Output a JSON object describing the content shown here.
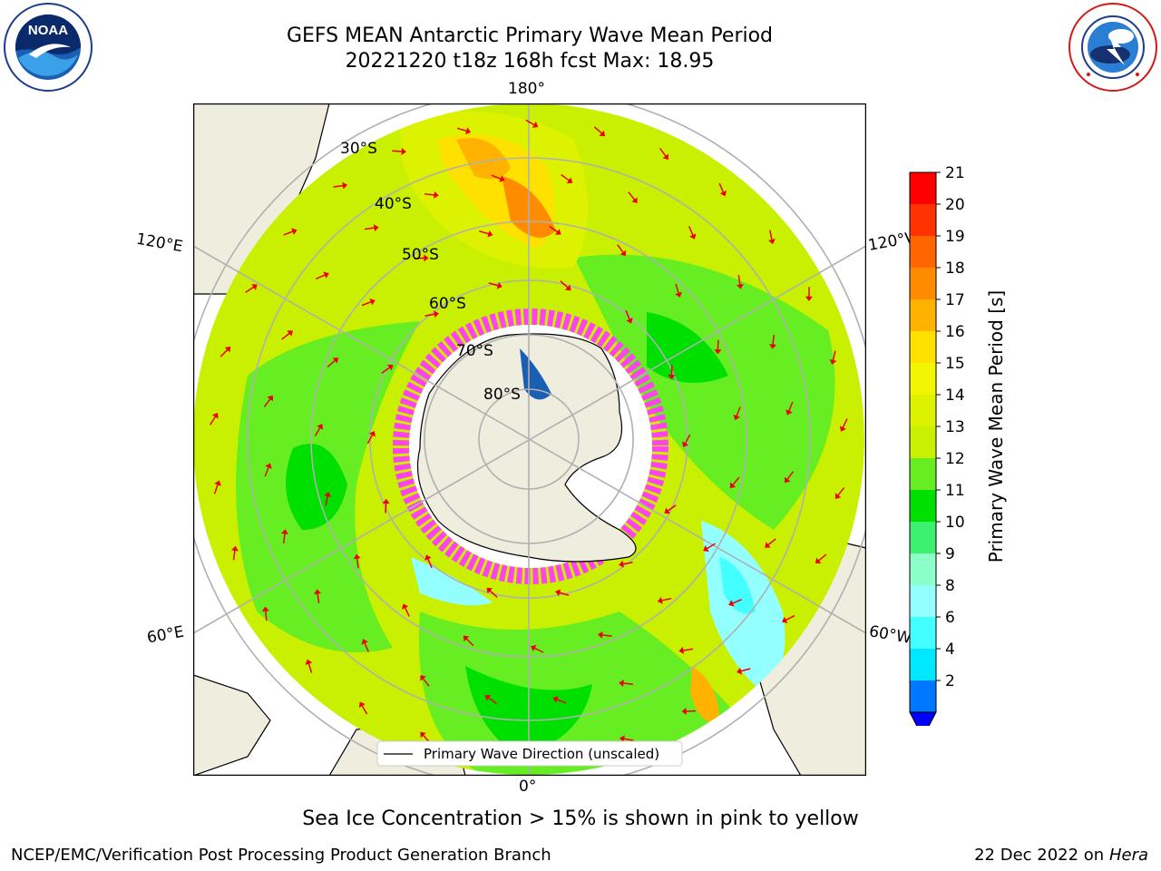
{
  "header": {
    "title_line1": "GEFS MEAN Antarctic Primary Wave Mean Period",
    "title_line2": "20221220 t18z 168h fcst   Max: 18.95"
  },
  "logos": {
    "noaa_text": "NOAA",
    "noaa_ring_text": "NATIONAL OCEANIC AND ATMOSPHERIC ADMINISTRATION · U.S. DEPARTMENT OF COMMERCE",
    "nws_ring_text": "NATIONAL WEATHER SERVICE"
  },
  "map": {
    "projection": "south-polar-stereographic",
    "longitude_labels": {
      "top": "180°",
      "bottom": "0°",
      "upper_left": "120°E",
      "lower_left": "60°E",
      "upper_right": "120°W",
      "lower_right": "60°W"
    },
    "latitude_labels": [
      "30°S",
      "40°S",
      "50°S",
      "60°S",
      "70°S",
      "80°S"
    ],
    "legend_label": "Primary Wave Direction (unscaled)",
    "colors": {
      "land": "#efedde",
      "ice_pink": "#ff44ee",
      "arrow": "#ee0000",
      "grid": "#b0b0b0"
    }
  },
  "colorbar": {
    "label": "Primary Wave Mean Period [s]",
    "ticks": [
      "21",
      "20",
      "19",
      "18",
      "17",
      "16",
      "15",
      "14",
      "13",
      "12",
      "11",
      "10",
      "9",
      "8",
      "6",
      "4",
      "2"
    ],
    "colors_top_to_bottom": [
      "#ff0000",
      "#ff3300",
      "#ff6600",
      "#ff8c00",
      "#ffb300",
      "#ffe100",
      "#f2f500",
      "#ddf200",
      "#c8f000",
      "#66ee22",
      "#00e000",
      "#3ef070",
      "#8cffc8",
      "#93ffff",
      "#44ffff",
      "#00e8ff",
      "#0077ff"
    ],
    "extend_color": "#0000ff"
  },
  "footer": {
    "caption": "Sea Ice Concentration > 15% is shown in pink to yellow",
    "credit": "NCEP/EMC/Verification Post Processing Product Generation Branch",
    "date": "22 Dec 2022 on",
    "machine": "Hera"
  }
}
